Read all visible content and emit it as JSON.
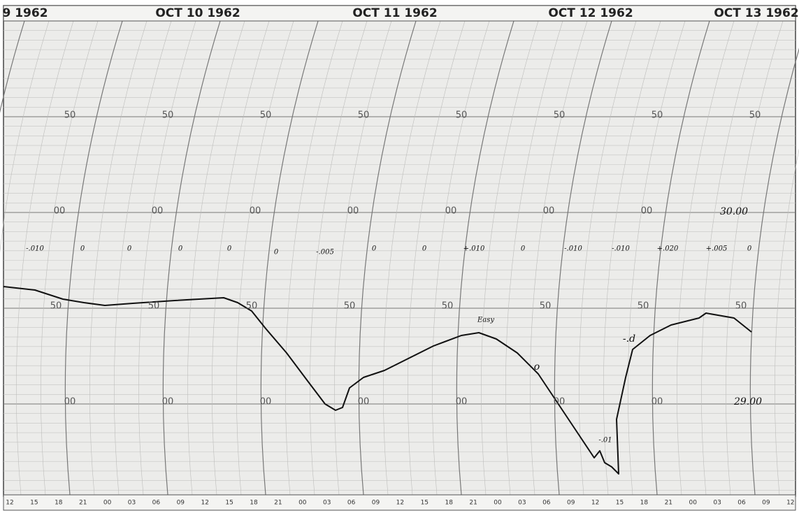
{
  "header": {
    "dates": [
      "9 1962",
      "OCT 10 1962",
      "OCT 11 1962",
      "OCT 12 1962",
      "OCT 13 1962"
    ]
  },
  "footer": {
    "hours": [
      "12",
      "15",
      "18",
      "21",
      "00",
      "03",
      "06",
      "09",
      "12",
      "15",
      "18",
      "21",
      "00",
      "03",
      "06",
      "09",
      "12",
      "15",
      "18",
      "21",
      "00",
      "03",
      "06",
      "09",
      "12",
      "15",
      "18",
      "21",
      "00",
      "03",
      "06",
      "09",
      "12"
    ]
  },
  "scale": {
    "row_a": [
      "50",
      "50",
      "50",
      "50",
      "50",
      "50",
      "50",
      "50"
    ],
    "row_b": [
      "00",
      "00",
      "00",
      "00",
      "00",
      "00",
      "00"
    ],
    "row_c": [
      "50",
      "50",
      "50",
      "50",
      "50",
      "50",
      "50",
      "50"
    ],
    "row_d": [
      "00",
      "00",
      "00",
      "00",
      "00",
      "00",
      "00"
    ]
  },
  "notes": {
    "changes": [
      "-.010",
      "0",
      "0",
      "0",
      "0",
      "0",
      "-.005",
      "0",
      "0",
      "+.010",
      "0",
      "-.010",
      "-.010",
      "+.020",
      "+.005",
      "0"
    ],
    "upper_mark": "30.00",
    "lower_mark": "29.00",
    "easy": "Easy",
    "circle": "o",
    "dip": "-.01",
    "rise": "-.d"
  }
}
